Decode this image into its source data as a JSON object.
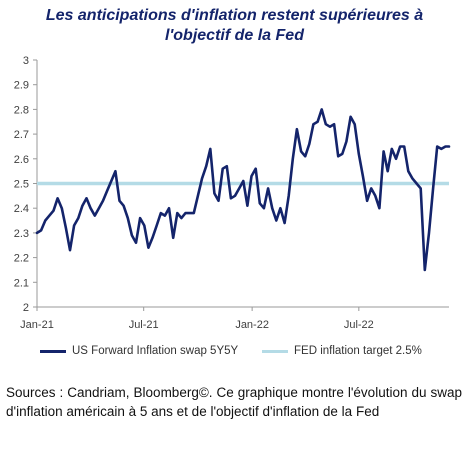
{
  "title_line1": "Les anticipations d'inflation restent supérieures à",
  "title_line2": "l'objectif de la Fed",
  "caption": "Sources : Candriam, Bloomberg©. Ce graphique montre l'évolution du swap d'inflation américain à 5 ans et de l'objectif d'inflation de la Fed",
  "chart_data": {
    "type": "line",
    "title": "Les anticipations d'inflation restent supérieures à l'objectif de la Fed",
    "ylim": [
      2,
      3
    ],
    "yticks": [
      "2",
      "2.1",
      "2.2",
      "2.3",
      "2.4",
      "2.5",
      "2.6",
      "2.7",
      "2.8",
      "2.9",
      "3"
    ],
    "xlim": [
      "2021-01-01",
      "2022-12-01"
    ],
    "xticks": [
      {
        "label": "Jan-21",
        "date": "2021-01-01"
      },
      {
        "label": "Jul-21",
        "date": "2021-07-01"
      },
      {
        "label": "Jan-22",
        "date": "2022-01-01"
      },
      {
        "label": "Jul-22",
        "date": "2022-07-01"
      }
    ],
    "grid": false,
    "legend_position": "bottom",
    "series": [
      {
        "name": "US Forward Inflation swap 5Y5Y",
        "color": "#14246b",
        "x": [
          "2021-01-01",
          "2021-01-08",
          "2021-01-15",
          "2021-01-22",
          "2021-01-29",
          "2021-02-05",
          "2021-02-12",
          "2021-02-19",
          "2021-02-26",
          "2021-03-05",
          "2021-03-12",
          "2021-03-19",
          "2021-03-26",
          "2021-04-02",
          "2021-04-09",
          "2021-04-16",
          "2021-04-23",
          "2021-04-30",
          "2021-05-07",
          "2021-05-14",
          "2021-05-21",
          "2021-05-28",
          "2021-06-04",
          "2021-06-11",
          "2021-06-18",
          "2021-06-25",
          "2021-07-02",
          "2021-07-09",
          "2021-07-16",
          "2021-07-23",
          "2021-07-30",
          "2021-08-06",
          "2021-08-13",
          "2021-08-20",
          "2021-08-27",
          "2021-09-03",
          "2021-09-10",
          "2021-09-17",
          "2021-09-24",
          "2021-10-01",
          "2021-10-08",
          "2021-10-15",
          "2021-10-22",
          "2021-10-29",
          "2021-11-05",
          "2021-11-12",
          "2021-11-19",
          "2021-11-26",
          "2021-12-03",
          "2021-12-10",
          "2021-12-17",
          "2021-12-24",
          "2021-12-31",
          "2022-01-07",
          "2022-01-14",
          "2022-01-21",
          "2022-01-28",
          "2022-02-04",
          "2022-02-11",
          "2022-02-18",
          "2022-02-25",
          "2022-03-04",
          "2022-03-11",
          "2022-03-18",
          "2022-03-25",
          "2022-04-01",
          "2022-04-08",
          "2022-04-15",
          "2022-04-22",
          "2022-04-29",
          "2022-05-06",
          "2022-05-13",
          "2022-05-20",
          "2022-05-27",
          "2022-06-03",
          "2022-06-10",
          "2022-06-17",
          "2022-06-24",
          "2022-07-01",
          "2022-07-08",
          "2022-07-15",
          "2022-07-22",
          "2022-07-29",
          "2022-08-05",
          "2022-08-12",
          "2022-08-19",
          "2022-08-26",
          "2022-09-02",
          "2022-09-09",
          "2022-09-16",
          "2022-09-23",
          "2022-09-30",
          "2022-10-07",
          "2022-10-14",
          "2022-10-21",
          "2022-10-28",
          "2022-11-04",
          "2022-11-11",
          "2022-11-18",
          "2022-11-25",
          "2022-12-01"
        ],
        "values": [
          2.3,
          2.31,
          2.35,
          2.37,
          2.39,
          2.44,
          2.4,
          2.32,
          2.23,
          2.33,
          2.36,
          2.41,
          2.44,
          2.4,
          2.37,
          2.4,
          2.43,
          2.47,
          2.51,
          2.55,
          2.43,
          2.41,
          2.36,
          2.29,
          2.26,
          2.36,
          2.33,
          2.24,
          2.28,
          2.33,
          2.38,
          2.37,
          2.4,
          2.28,
          2.38,
          2.36,
          2.38,
          2.38,
          2.38,
          2.45,
          2.52,
          2.57,
          2.64,
          2.46,
          2.43,
          2.56,
          2.57,
          2.44,
          2.45,
          2.48,
          2.51,
          2.41,
          2.53,
          2.56,
          2.42,
          2.4,
          2.48,
          2.4,
          2.35,
          2.4,
          2.34,
          2.45,
          2.6,
          2.72,
          2.63,
          2.61,
          2.66,
          2.74,
          2.75,
          2.8,
          2.74,
          2.73,
          2.74,
          2.61,
          2.62,
          2.67,
          2.77,
          2.74,
          2.62,
          2.53,
          2.43,
          2.48,
          2.45,
          2.4,
          2.63,
          2.55,
          2.64,
          2.6,
          2.65,
          2.65,
          2.55,
          2.52,
          2.5,
          2.48,
          2.15,
          2.3,
          2.48,
          2.65,
          2.64,
          2.65,
          2.65
        ]
      },
      {
        "name": "FED inflation target 2.5%",
        "color": "#b4dbe6",
        "x": [
          "2021-01-01",
          "2022-12-01"
        ],
        "values": [
          2.5,
          2.5
        ]
      }
    ]
  }
}
